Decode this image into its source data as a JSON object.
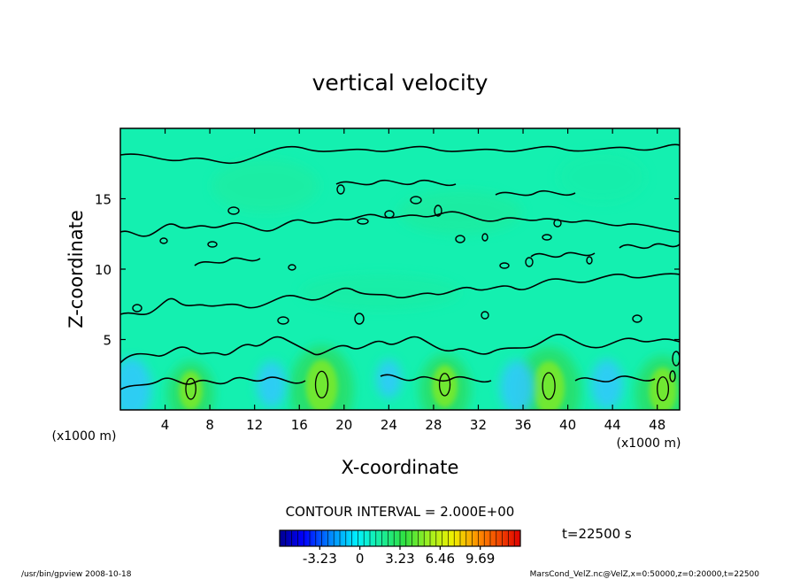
{
  "chart_data": {
    "type": "heatmap",
    "title": "vertical velocity",
    "xlabel": "X-coordinate",
    "ylabel": "Z-coordinate",
    "x_unit_note": "(x1000 m)",
    "z_unit_note": "(x1000 m)",
    "xlim": [
      0,
      50
    ],
    "ylim": [
      0,
      20
    ],
    "x_ticks": [
      4,
      8,
      12,
      16,
      20,
      24,
      28,
      32,
      36,
      40,
      44,
      48
    ],
    "y_ticks": [
      5,
      10,
      15
    ],
    "contour_interval_label": "CONTOUR INTERVAL = 2.000E+00",
    "time_label": "t=22500 s",
    "colorbar": {
      "ticks": [
        "-3.23",
        "0",
        "3.23",
        "6.46",
        "9.69"
      ],
      "range": [
        -6.46,
        12.92
      ]
    },
    "updraft_cores": [
      {
        "x": 6.3,
        "z": 1.5,
        "w": 2.2
      },
      {
        "x": 18.0,
        "z": 1.8,
        "w": 3.0
      },
      {
        "x": 29.0,
        "z": 1.8,
        "w": 2.4
      },
      {
        "x": 38.3,
        "z": 1.7,
        "w": 3.0
      },
      {
        "x": 48.5,
        "z": 1.5,
        "w": 2.6
      }
    ],
    "downdraft_zones": [
      {
        "x": 1.0,
        "z": 1.5,
        "w": -1.6
      },
      {
        "x": 13.5,
        "z": 1.8,
        "w": -1.2
      },
      {
        "x": 24.0,
        "z": 2.2,
        "w": -1.0
      },
      {
        "x": 35.5,
        "z": 1.6,
        "w": -1.4
      },
      {
        "x": 43.5,
        "z": 1.8,
        "w": -1.3
      }
    ]
  },
  "footer": {
    "left": "/usr/bin/gpview   2008-10-18",
    "right": "MarsCond_VelZ.nc@VelZ,x=0:50000,z=0:20000,t=22500"
  },
  "colors": {
    "background_field": "#14f0b0",
    "contour": "#000000"
  }
}
